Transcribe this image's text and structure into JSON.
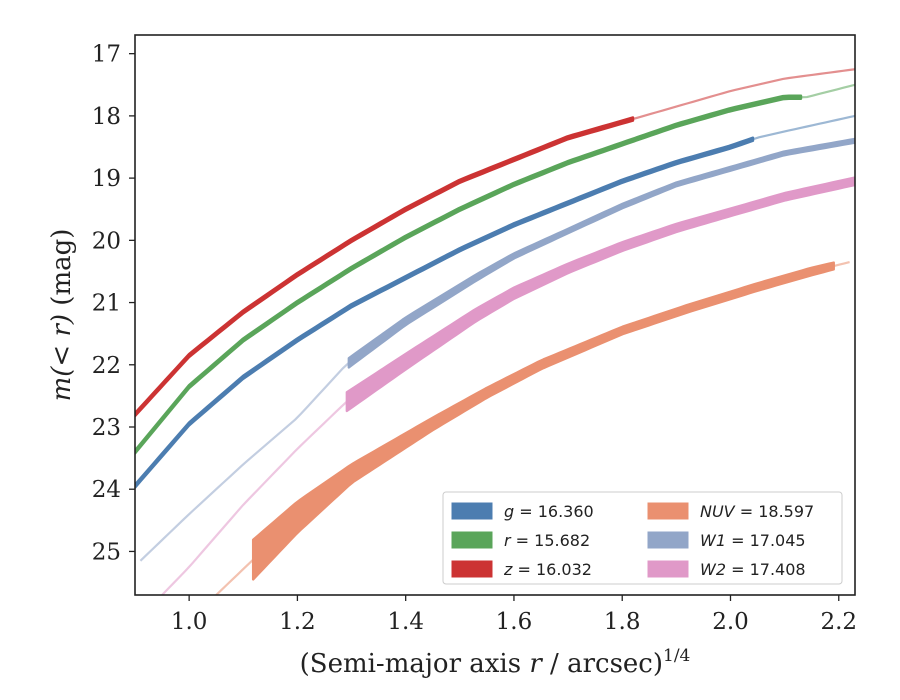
{
  "chart_data": {
    "type": "line",
    "xlabel_main": "(Semi-major axis ",
    "xlabel_var": "r",
    "xlabel_rest": " / arcsec)",
    "xlabel_sup": "1/4",
    "ylabel_main": "m(< r)",
    "ylabel_unit": " (mag)",
    "xlim": [
      0.9,
      2.23
    ],
    "ylim": [
      25.7,
      16.7
    ],
    "x_ticks": [
      "1.0",
      "1.2",
      "1.4",
      "1.6",
      "1.8",
      "2.0",
      "2.2"
    ],
    "y_ticks": [
      "17",
      "18",
      "19",
      "20",
      "21",
      "22",
      "23",
      "24",
      "25"
    ],
    "grid": false,
    "legend_position": "bottom-right",
    "series": [
      {
        "name": "g = 16.360",
        "band": "g",
        "total": "16.360",
        "color": "#4c7db0",
        "x": [
          0.9,
          1.0,
          1.1,
          1.2,
          1.3,
          1.4,
          1.5,
          1.6,
          1.7,
          1.8,
          1.9,
          2.0,
          2.05,
          2.1,
          2.23
        ],
        "y": [
          23.95,
          22.95,
          22.2,
          21.6,
          21.05,
          20.6,
          20.15,
          19.75,
          19.4,
          19.05,
          18.75,
          18.5,
          18.35,
          18.25,
          18.0
        ],
        "band_width": [
          0.05,
          0.05,
          0.05,
          0.05,
          0.05,
          0.05,
          0.05,
          0.05,
          0.05,
          0.05,
          0.05,
          0.05,
          0.05,
          0.05,
          0.05
        ],
        "solid_range": [
          0.9,
          2.05
        ]
      },
      {
        "name": "r = 15.682",
        "band": "r",
        "total": "15.682",
        "color": "#5aa55a",
        "x": [
          0.9,
          1.0,
          1.1,
          1.2,
          1.3,
          1.4,
          1.5,
          1.6,
          1.7,
          1.8,
          1.9,
          2.0,
          2.1,
          2.14,
          2.23
        ],
        "y": [
          23.4,
          22.35,
          21.6,
          21.0,
          20.45,
          19.95,
          19.5,
          19.1,
          18.75,
          18.45,
          18.15,
          17.9,
          17.7,
          17.7,
          17.5
        ],
        "band_width": [
          0.05,
          0.05,
          0.05,
          0.05,
          0.05,
          0.05,
          0.05,
          0.05,
          0.05,
          0.05,
          0.05,
          0.05,
          0.05,
          0.05,
          0.05
        ],
        "solid_range": [
          0.9,
          2.14
        ]
      },
      {
        "name": "z = 16.032",
        "band": "z",
        "total": "16.032",
        "color": "#cc3333",
        "x": [
          0.9,
          1.0,
          1.1,
          1.2,
          1.3,
          1.4,
          1.5,
          1.6,
          1.7,
          1.8,
          1.82,
          1.9,
          2.0,
          2.1,
          2.23
        ],
        "y": [
          22.8,
          21.85,
          21.15,
          20.55,
          20.0,
          19.5,
          19.05,
          18.7,
          18.35,
          18.1,
          18.05,
          17.85,
          17.6,
          17.4,
          17.25
        ],
        "band_width": [
          0.05,
          0.05,
          0.05,
          0.05,
          0.05,
          0.05,
          0.05,
          0.05,
          0.05,
          0.05,
          0.05,
          0.05,
          0.05,
          0.05,
          0.05
        ],
        "solid_range": [
          0.9,
          1.82
        ]
      },
      {
        "name": "NUV = 18.597",
        "band": "NUV",
        "total": "18.597",
        "color": "#ea9070",
        "x": [
          1.05,
          1.11,
          1.2,
          1.3,
          1.45,
          1.55,
          1.65,
          1.8,
          1.92,
          2.05,
          2.15,
          2.22
        ],
        "y": [
          25.7,
          25.2,
          24.45,
          23.75,
          22.95,
          22.45,
          22.0,
          21.45,
          21.1,
          20.75,
          20.5,
          20.35
        ],
        "band_width": [
          0.05,
          0.65,
          0.5,
          0.3,
          0.2,
          0.16,
          0.14,
          0.12,
          0.12,
          0.12,
          0.12,
          0.1
        ],
        "solid_range": [
          1.11,
          2.2
        ]
      },
      {
        "name": "W1 = 17.045",
        "band": "W1",
        "total": "17.045",
        "color": "#92a6c8",
        "x": [
          0.91,
          1.0,
          1.1,
          1.2,
          1.29,
          1.4,
          1.53,
          1.6,
          1.7,
          1.8,
          1.9,
          2.0,
          2.1,
          2.23
        ],
        "y": [
          25.15,
          24.4,
          23.6,
          22.85,
          22.0,
          21.3,
          20.6,
          20.25,
          19.85,
          19.45,
          19.1,
          18.85,
          18.6,
          18.4
        ],
        "band_width": [
          0.03,
          0.03,
          0.03,
          0.03,
          0.15,
          0.12,
          0.1,
          0.08,
          0.07,
          0.07,
          0.06,
          0.06,
          0.06,
          0.06
        ],
        "solid_range": [
          1.29,
          2.23
        ]
      },
      {
        "name": "W2 = 17.408",
        "band": "W2",
        "total": "17.408",
        "color": "#e099c8",
        "x": [
          0.95,
          1.0,
          1.1,
          1.2,
          1.29,
          1.4,
          1.53,
          1.6,
          1.7,
          1.8,
          1.9,
          2.0,
          2.1,
          2.23
        ],
        "y": [
          25.7,
          25.25,
          24.25,
          23.35,
          22.6,
          21.95,
          21.2,
          20.85,
          20.45,
          20.1,
          19.8,
          19.55,
          19.3,
          19.05
        ],
        "band_width": [
          0.03,
          0.03,
          0.03,
          0.03,
          0.3,
          0.25,
          0.2,
          0.18,
          0.15,
          0.14,
          0.13,
          0.12,
          0.12,
          0.12
        ],
        "solid_range": [
          1.29,
          2.23
        ]
      }
    ]
  }
}
